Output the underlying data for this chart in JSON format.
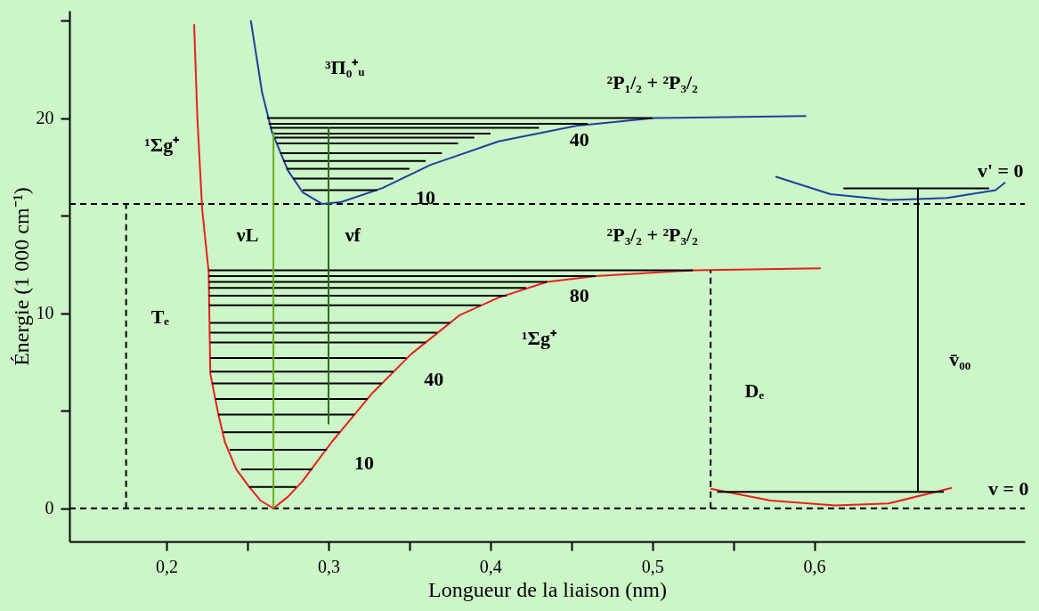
{
  "chart_data": {
    "type": "line",
    "xlabel": "Longueur de la liaison  (nm)",
    "ylabel": "Énergie  (1 000 cm⁻¹)",
    "xlim": [
      0.14,
      0.73
    ],
    "ylim": [
      -1.7,
      25.5
    ],
    "xticks": [
      {
        "value": 0.2,
        "label": "0,2"
      },
      {
        "value": 0.25,
        "label": null
      },
      {
        "value": 0.3,
        "label": "0,3"
      },
      {
        "value": 0.35,
        "label": null
      },
      {
        "value": 0.4,
        "label": "0,4"
      },
      {
        "value": 0.45,
        "label": null
      },
      {
        "value": 0.5,
        "label": "0,5"
      },
      {
        "value": 0.55,
        "label": null
      },
      {
        "value": 0.6,
        "label": "0,6"
      }
    ],
    "yticks": [
      0,
      {
        "value": 5,
        "label": null
      },
      10,
      {
        "value": 15,
        "label": null
      },
      20,
      {
        "value": 25,
        "label": null
      }
    ],
    "grid": false,
    "legend": false,
    "marker": "none",
    "ref_lines": [
      {
        "axis": "y",
        "value": 0,
        "label": null,
        "color": "#000000",
        "line_style": "dashed"
      },
      {
        "axis": "y",
        "value": 15.6,
        "label": null,
        "color": "#000000",
        "line_style": "dashed"
      }
    ],
    "series": [
      {
        "type": "line",
        "color": "#e8201a",
        "x": [
          0.217,
          0.219,
          0.222,
          0.226,
          0.227,
          0.232,
          0.236,
          0.243,
          0.251,
          0.258,
          0.266,
          0.275,
          0.284,
          0.293,
          0.302,
          0.315,
          0.327,
          0.351,
          0.381,
          0.405,
          0.435,
          0.465,
          0.525,
          0.604
        ],
        "values": [
          24.8,
          20,
          15.3,
          12.1,
          6.9,
          4.8,
          3.4,
          2.0,
          1.1,
          0.4,
          0,
          0.6,
          1.4,
          2.4,
          3.4,
          4.7,
          5.9,
          7.9,
          9.9,
          10.8,
          11.6,
          11.9,
          12.2,
          12.3
        ]
      },
      {
        "type": "line",
        "color": "#1f3f9f",
        "x": [
          0.252,
          0.259,
          0.265,
          0.275,
          0.284,
          0.296,
          0.308,
          0.333,
          0.363,
          0.405,
          0.453,
          0.501,
          0.595
        ],
        "values": [
          25,
          21.3,
          19.3,
          17.3,
          16.2,
          15.6,
          15.7,
          16.4,
          17.6,
          18.8,
          19.6,
          20.0,
          20.1
        ]
      },
      {
        "type": "line",
        "color": "#1f3f9f",
        "x": [
          0.576,
          0.61,
          0.646,
          0.682,
          0.712,
          0.718
        ],
        "values": [
          17.0,
          16.1,
          15.8,
          15.9,
          16.3,
          16.7
        ]
      },
      {
        "type": "line",
        "color": "#e8201a",
        "x": [
          0.536,
          0.573,
          0.613,
          0.646,
          0.685
        ],
        "values": [
          1.0,
          0.4,
          0.15,
          0.25,
          1.05
        ]
      },
      {
        "type": "line",
        "color": "#000000",
        "x": [
          0.251,
          0.28
        ],
        "values": [
          1.1,
          1.1
        ]
      },
      {
        "type": "line",
        "color": "#000000",
        "x": [
          0.246,
          0.29
        ],
        "values": [
          2.0,
          2.0
        ]
      },
      {
        "type": "line",
        "color": "#000000",
        "x": [
          0.239,
          0.299
        ],
        "values": [
          3.0,
          3.0
        ]
      },
      {
        "type": "line",
        "color": "#000000",
        "x": [
          0.235,
          0.307
        ],
        "values": [
          3.9,
          3.9
        ]
      },
      {
        "type": "line",
        "color": "#000000",
        "x": [
          0.232,
          0.316
        ],
        "values": [
          4.8,
          4.8
        ]
      },
      {
        "type": "line",
        "color": "#000000",
        "x": [
          0.23,
          0.324
        ],
        "values": [
          5.6,
          5.6
        ]
      },
      {
        "type": "line",
        "color": "#000000",
        "x": [
          0.228,
          0.333
        ],
        "values": [
          6.4,
          6.4
        ]
      },
      {
        "type": "line",
        "color": "#000000",
        "x": [
          0.227,
          0.34
        ],
        "values": [
          7.0,
          7.0
        ]
      },
      {
        "type": "line",
        "color": "#000000",
        "x": [
          0.227,
          0.348
        ],
        "values": [
          7.7,
          7.7
        ]
      },
      {
        "type": "line",
        "color": "#000000",
        "x": [
          0.227,
          0.36
        ],
        "values": [
          8.5,
          8.5
        ]
      },
      {
        "type": "line",
        "color": "#000000",
        "x": [
          0.227,
          0.367
        ],
        "values": [
          9.0,
          9.0
        ]
      },
      {
        "type": "line",
        "color": "#000000",
        "x": [
          0.227,
          0.375
        ],
        "values": [
          9.5,
          9.5
        ]
      },
      {
        "type": "line",
        "color": "#000000",
        "x": [
          0.226,
          0.394
        ],
        "values": [
          10.4,
          10.4
        ]
      },
      {
        "type": "line",
        "color": "#000000",
        "x": [
          0.226,
          0.41
        ],
        "values": [
          10.9,
          10.9
        ]
      },
      {
        "type": "line",
        "color": "#000000",
        "x": [
          0.226,
          0.422
        ],
        "values": [
          11.3,
          11.3
        ]
      },
      {
        "type": "line",
        "color": "#000000",
        "x": [
          0.226,
          0.435
        ],
        "values": [
          11.6,
          11.6
        ]
      },
      {
        "type": "line",
        "color": "#000000",
        "x": [
          0.226,
          0.465
        ],
        "values": [
          11.9,
          11.9
        ]
      },
      {
        "type": "line",
        "color": "#000000",
        "x": [
          0.226,
          0.525
        ],
        "values": [
          12.2,
          12.2
        ]
      },
      {
        "type": "line",
        "color": "#000000",
        "x": [
          0.262,
          0.5
        ],
        "values": [
          20.0,
          20.0
        ]
      },
      {
        "type": "line",
        "color": "#000000",
        "x": [
          0.263,
          0.46
        ],
        "values": [
          19.7,
          19.7
        ]
      },
      {
        "type": "line",
        "color": "#000000",
        "x": [
          0.264,
          0.43
        ],
        "values": [
          19.5,
          19.5
        ]
      },
      {
        "type": "line",
        "color": "#000000",
        "x": [
          0.266,
          0.4
        ],
        "values": [
          19.2,
          19.2
        ]
      },
      {
        "type": "line",
        "color": "#000000",
        "x": [
          0.267,
          0.39
        ],
        "values": [
          19.0,
          19.0
        ]
      },
      {
        "type": "line",
        "color": "#000000",
        "x": [
          0.268,
          0.38
        ],
        "values": [
          18.7,
          18.7
        ]
      },
      {
        "type": "line",
        "color": "#000000",
        "x": [
          0.27,
          0.37
        ],
        "values": [
          18.2,
          18.2
        ]
      },
      {
        "type": "line",
        "color": "#000000",
        "x": [
          0.272,
          0.36
        ],
        "values": [
          17.8,
          17.8
        ]
      },
      {
        "type": "line",
        "color": "#000000",
        "x": [
          0.274,
          0.35
        ],
        "values": [
          17.4,
          17.4
        ]
      },
      {
        "type": "line",
        "color": "#000000",
        "x": [
          0.278,
          0.34
        ],
        "values": [
          16.9,
          16.9
        ]
      },
      {
        "type": "line",
        "color": "#000000",
        "x": [
          0.284,
          0.33
        ],
        "values": [
          16.3,
          16.3
        ]
      },
      {
        "type": "line",
        "color": "#000000",
        "x": [
          0.618,
          0.708
        ],
        "values": [
          16.4,
          16.4
        ]
      },
      {
        "type": "line",
        "color": "#000000",
        "x": [
          0.54,
          0.68
        ],
        "values": [
          0.85,
          0.85
        ]
      },
      {
        "type": "line",
        "color": "#6aab1e",
        "x": [
          0.266,
          0.266
        ],
        "values": [
          0,
          19.3
        ]
      },
      {
        "type": "line",
        "color": "#2a6e1a",
        "x": [
          0.3,
          0.3
        ],
        "values": [
          19.5,
          4.3
        ]
      },
      {
        "type": "line",
        "color": "#000000",
        "line_style": "dashed",
        "x": [
          0.175,
          0.175
        ],
        "values": [
          0,
          15.6
        ]
      },
      {
        "type": "line",
        "color": "#000000",
        "line_style": "dashed",
        "x": [
          0.536,
          0.536
        ],
        "values": [
          0,
          12.2
        ]
      },
      {
        "type": "line",
        "color": "#000000",
        "x": [
          0.664,
          0.664
        ],
        "values": [
          0.85,
          16.4
        ]
      }
    ],
    "annotations": [
      "³Π₀⁺ᵤ",
      "²P₁/₂ + ²P₃/₂",
      "¹Σg⁺",
      "40",
      "10",
      "νL",
      "νf",
      "²P₃/₂ + ²P₃/₂",
      "80",
      "¹Σg⁺",
      "40",
      "10",
      "Tₑ",
      "Dₑ",
      "v̄₀₀",
      "v' = 0",
      "v = 0"
    ]
  }
}
